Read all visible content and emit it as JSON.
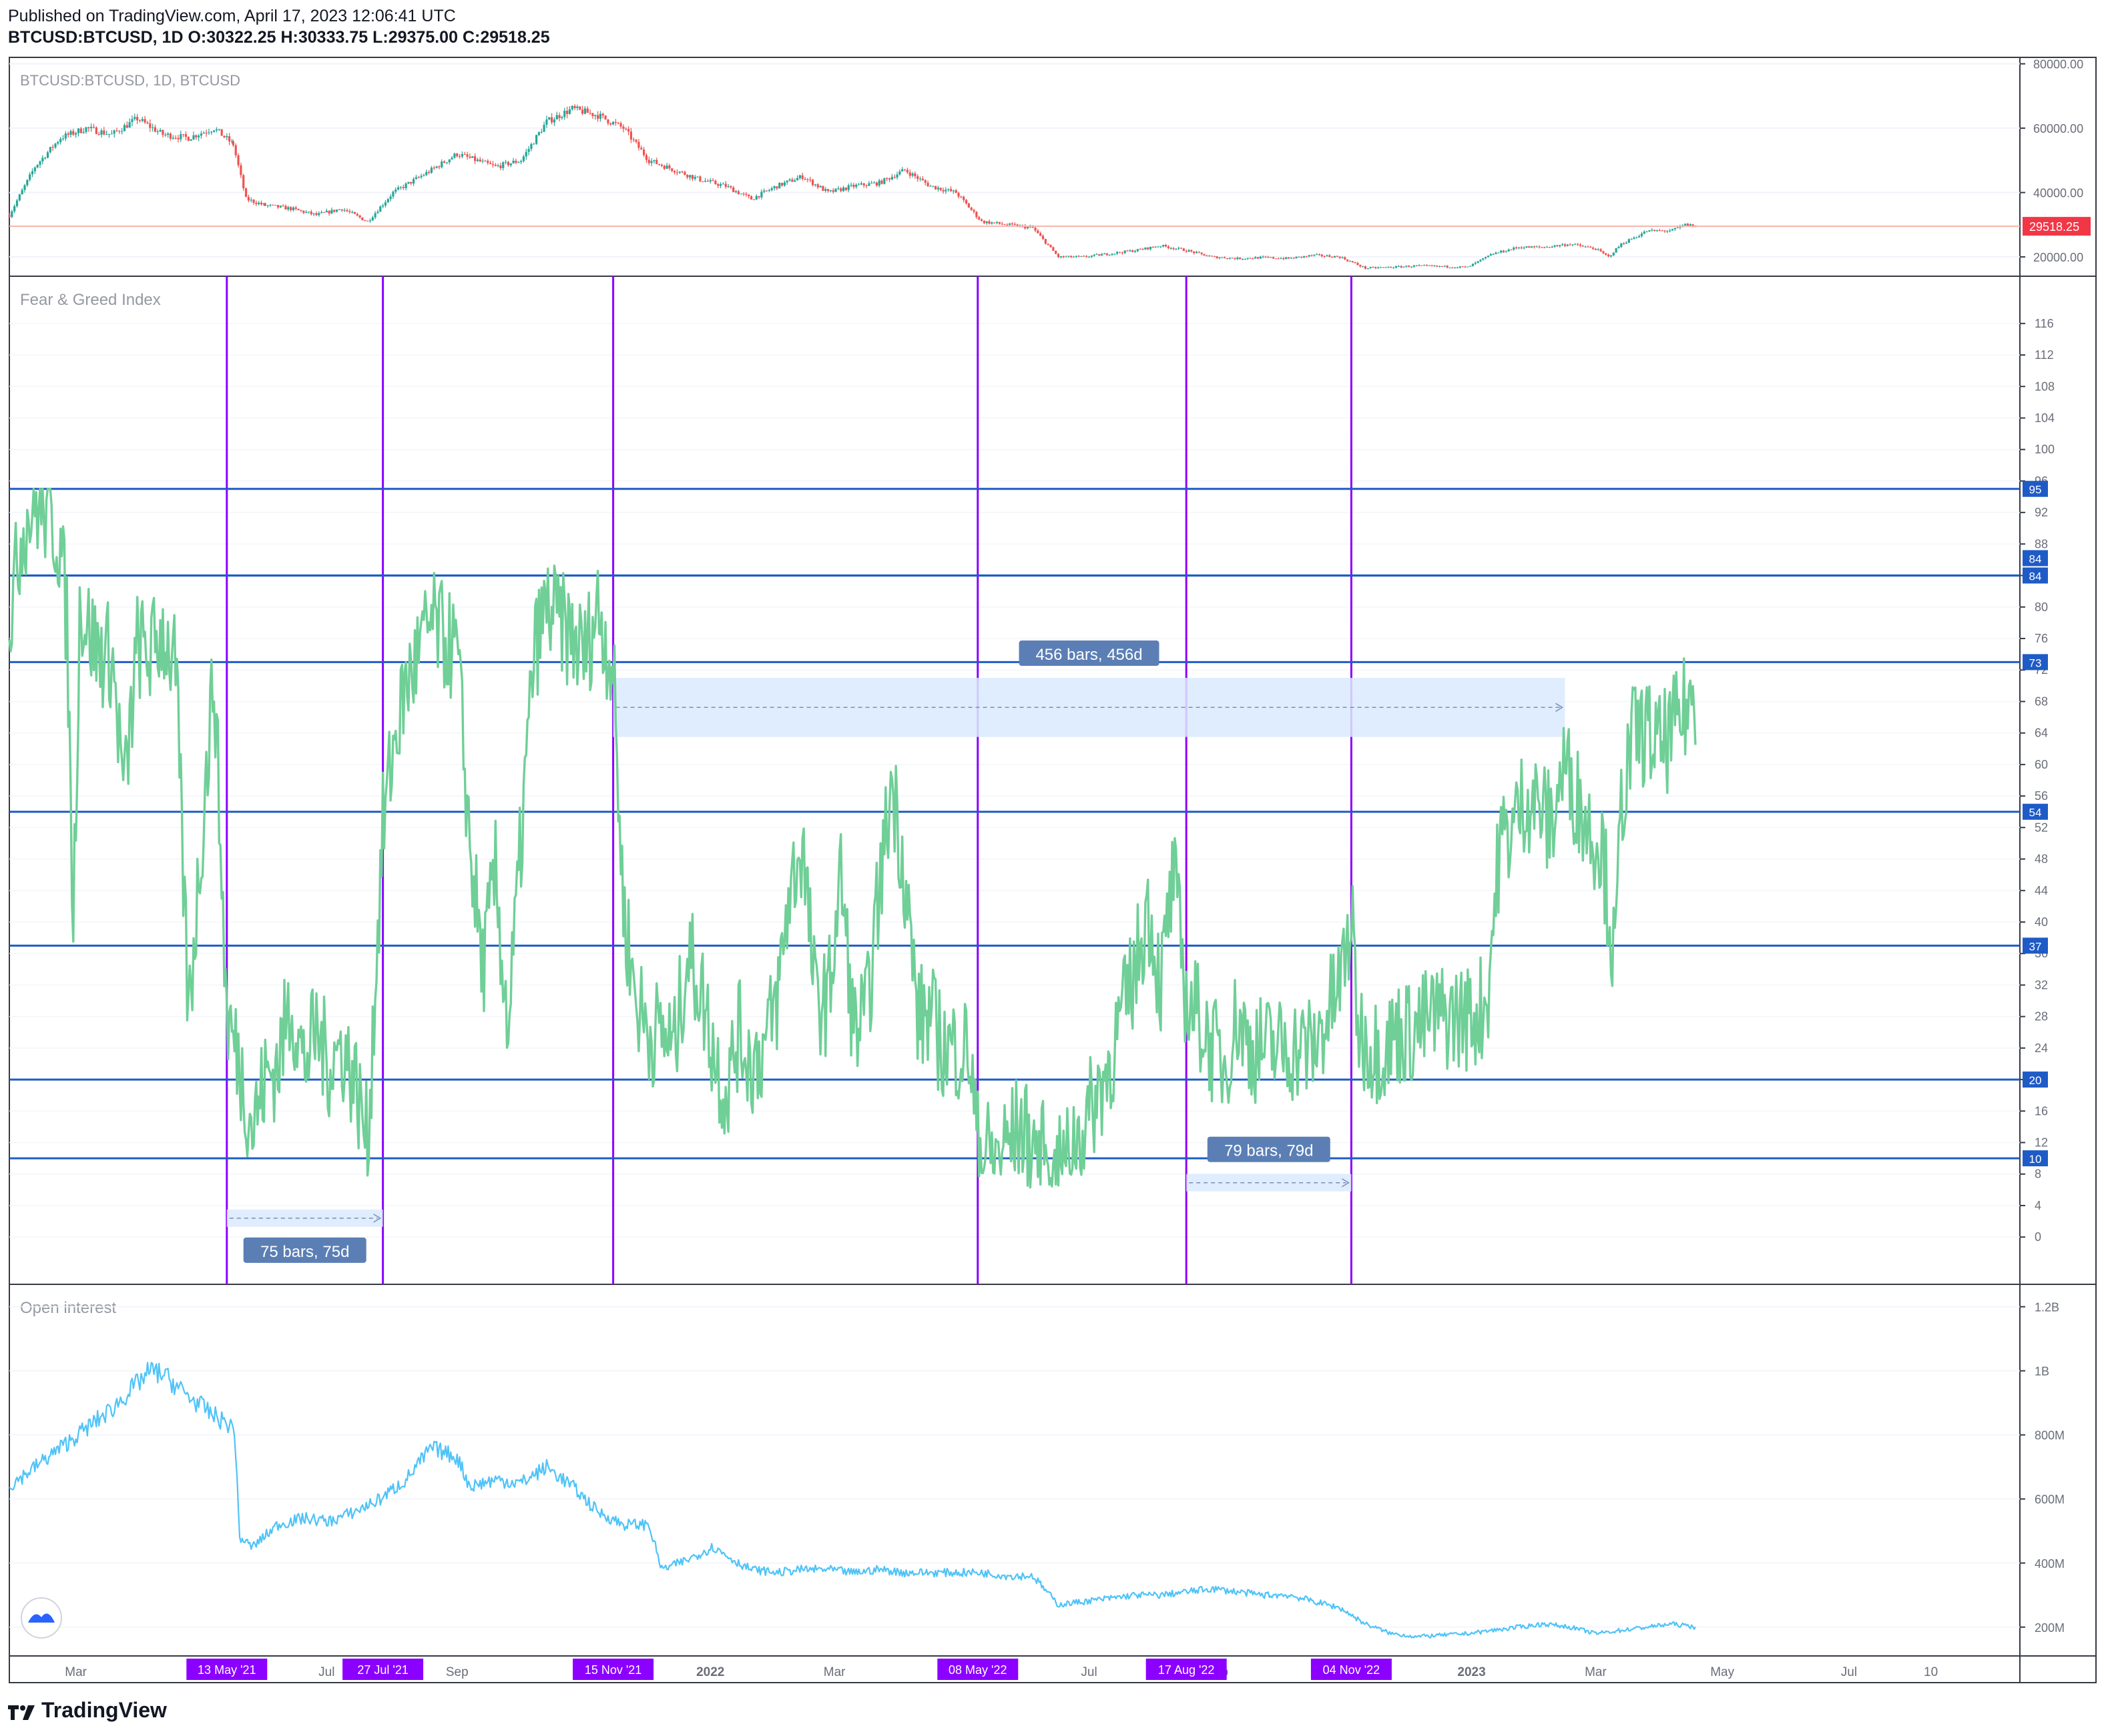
{
  "header": {
    "published": "Published on TradingView.com, April 17, 2023 12:06:41 UTC",
    "symbol": "BTCUSD:BTCUSD, 1D",
    "open_label": "O:",
    "open": "30322.25",
    "high_label": "H:",
    "high": "30333.75",
    "low_label": "L:",
    "low": "29375.00",
    "close_label": "C:",
    "close": "29518.25"
  },
  "footer": {
    "brand": "TradingView"
  },
  "colors": {
    "candle_up": "#26a69a",
    "candle_down": "#ef5350",
    "fear_greed": "#6fcf97",
    "open_interest": "#4fc3f7",
    "hline": "#1e5bc6",
    "vline": "#8b00ff",
    "range_fill": "#dbeafe",
    "range_label": "#5b7fb5",
    "price_tag": "#f23645",
    "date_tag": "#8b00ff",
    "level_tag": "#1e5bc6"
  },
  "chart_data": [
    {
      "type": "candlestick",
      "title": "BTCUSD:BTCUSD, 1D, BTCUSD",
      "ylim": [
        14000,
        82000
      ],
      "y_ticks": [
        "80000.00",
        "60000.00",
        "40000.00",
        "20000.00"
      ],
      "last_price": "29518.25",
      "anchors": [
        [
          0,
          33000
        ],
        [
          20,
          48000
        ],
        [
          40,
          57000
        ],
        [
          60,
          60000
        ],
        [
          80,
          58000
        ],
        [
          100,
          63000
        ],
        [
          120,
          58000
        ],
        [
          140,
          57000
        ],
        [
          160,
          60000
        ],
        [
          175,
          55000
        ],
        [
          185,
          38000
        ],
        [
          200,
          36000
        ],
        [
          220,
          35000
        ],
        [
          240,
          33000
        ],
        [
          260,
          35000
        ],
        [
          280,
          31000
        ],
        [
          300,
          40000
        ],
        [
          330,
          47000
        ],
        [
          350,
          52000
        ],
        [
          380,
          48000
        ],
        [
          400,
          50000
        ],
        [
          420,
          62000
        ],
        [
          440,
          66000
        ],
        [
          460,
          64000
        ],
        [
          480,
          60000
        ],
        [
          500,
          50000
        ],
        [
          520,
          47000
        ],
        [
          540,
          44000
        ],
        [
          560,
          42000
        ],
        [
          580,
          38000
        ],
        [
          600,
          42000
        ],
        [
          620,
          45000
        ],
        [
          640,
          40000
        ],
        [
          660,
          42000
        ],
        [
          680,
          43000
        ],
        [
          700,
          47000
        ],
        [
          720,
          42000
        ],
        [
          740,
          40000
        ],
        [
          760,
          31000
        ],
        [
          780,
          30000
        ],
        [
          800,
          29000
        ],
        [
          820,
          20000
        ],
        [
          840,
          20000
        ],
        [
          860,
          21000
        ],
        [
          880,
          22000
        ],
        [
          900,
          23500
        ],
        [
          920,
          22000
        ],
        [
          940,
          20000
        ],
        [
          960,
          19500
        ],
        [
          980,
          19800
        ],
        [
          1000,
          19500
        ],
        [
          1020,
          20500
        ],
        [
          1040,
          20000
        ],
        [
          1060,
          16500
        ],
        [
          1080,
          16800
        ],
        [
          1100,
          17200
        ],
        [
          1120,
          17000
        ],
        [
          1140,
          16800
        ],
        [
          1160,
          21000
        ],
        [
          1180,
          23000
        ],
        [
          1200,
          23000
        ],
        [
          1220,
          24000
        ],
        [
          1240,
          22500
        ],
        [
          1250,
          20000
        ],
        [
          1260,
          24000
        ],
        [
          1280,
          28000
        ],
        [
          1300,
          28200
        ],
        [
          1310,
          30000
        ],
        [
          1318,
          29518
        ]
      ]
    },
    {
      "type": "line",
      "title": "Fear & Greed Index",
      "ylim": [
        -6,
        122
      ],
      "y_ticks": [
        116,
        112,
        108,
        104,
        100,
        96,
        92,
        88,
        84,
        80,
        76,
        72,
        68,
        64,
        60,
        56,
        52,
        48,
        44,
        40,
        36,
        32,
        28,
        24,
        20,
        16,
        12,
        8,
        4,
        0
      ],
      "levels": [
        95,
        84,
        84,
        73,
        54,
        37,
        20,
        10
      ],
      "anchors": [
        [
          0,
          78
        ],
        [
          10,
          90
        ],
        [
          20,
          93
        ],
        [
          30,
          92
        ],
        [
          40,
          88
        ],
        [
          45,
          78
        ],
        [
          50,
          40
        ],
        [
          55,
          80
        ],
        [
          70,
          74
        ],
        [
          80,
          74
        ],
        [
          90,
          56
        ],
        [
          100,
          75
        ],
        [
          110,
          74
        ],
        [
          120,
          77
        ],
        [
          130,
          72
        ],
        [
          140,
          28
        ],
        [
          150,
          50
        ],
        [
          160,
          72
        ],
        [
          170,
          28
        ],
        [
          180,
          22
        ],
        [
          190,
          14
        ],
        [
          200,
          20
        ],
        [
          210,
          22
        ],
        [
          220,
          30
        ],
        [
          230,
          22
        ],
        [
          240,
          26
        ],
        [
          250,
          22
        ],
        [
          260,
          24
        ],
        [
          270,
          20
        ],
        [
          280,
          12
        ],
        [
          292,
          52
        ],
        [
          300,
          62
        ],
        [
          310,
          70
        ],
        [
          320,
          74
        ],
        [
          330,
          78
        ],
        [
          340,
          76
        ],
        [
          350,
          74
        ],
        [
          360,
          50
        ],
        [
          370,
          34
        ],
        [
          380,
          46
        ],
        [
          390,
          26
        ],
        [
          400,
          50
        ],
        [
          410,
          74
        ],
        [
          420,
          80
        ],
        [
          430,
          78
        ],
        [
          440,
          76
        ],
        [
          450,
          74
        ],
        [
          460,
          80
        ],
        [
          472,
          72
        ],
        [
          480,
          42
        ],
        [
          490,
          30
        ],
        [
          500,
          26
        ],
        [
          510,
          26
        ],
        [
          520,
          24
        ],
        [
          530,
          36
        ],
        [
          540,
          32
        ],
        [
          550,
          24
        ],
        [
          560,
          18
        ],
        [
          570,
          26
        ],
        [
          580,
          22
        ],
        [
          590,
          24
        ],
        [
          600,
          30
        ],
        [
          610,
          44
        ],
        [
          620,
          50
        ],
        [
          630,
          30
        ],
        [
          640,
          30
        ],
        [
          650,
          46
        ],
        [
          660,
          26
        ],
        [
          670,
          28
        ],
        [
          680,
          44
        ],
        [
          690,
          58
        ],
        [
          700,
          46
        ],
        [
          710,
          28
        ],
        [
          720,
          28
        ],
        [
          730,
          24
        ],
        [
          740,
          24
        ],
        [
          750,
          24
        ],
        [
          757,
          12
        ],
        [
          770,
          10
        ],
        [
          780,
          12
        ],
        [
          790,
          14
        ],
        [
          800,
          12
        ],
        [
          810,
          10
        ],
        [
          820,
          8
        ],
        [
          830,
          12
        ],
        [
          840,
          14
        ],
        [
          850,
          18
        ],
        [
          860,
          22
        ],
        [
          870,
          28
        ],
        [
          880,
          34
        ],
        [
          890,
          42
        ],
        [
          900,
          32
        ],
        [
          910,
          46
        ],
        [
          920,
          30
        ],
        [
          930,
          28
        ],
        [
          940,
          24
        ],
        [
          950,
          22
        ],
        [
          960,
          28
        ],
        [
          970,
          24
        ],
        [
          980,
          24
        ],
        [
          990,
          24
        ],
        [
          1000,
          24
        ],
        [
          1010,
          24
        ],
        [
          1020,
          24
        ],
        [
          1030,
          28
        ],
        [
          1040,
          32
        ],
        [
          1049,
          40
        ],
        [
          1055,
          26
        ],
        [
          1065,
          24
        ],
        [
          1075,
          24
        ],
        [
          1085,
          26
        ],
        [
          1095,
          26
        ],
        [
          1105,
          27
        ],
        [
          1115,
          28
        ],
        [
          1125,
          28
        ],
        [
          1135,
          28
        ],
        [
          1145,
          28
        ],
        [
          1155,
          30
        ],
        [
          1165,
          50
        ],
        [
          1175,
          52
        ],
        [
          1185,
          56
        ],
        [
          1195,
          55
        ],
        [
          1205,
          52
        ],
        [
          1215,
          60
        ],
        [
          1225,
          56
        ],
        [
          1235,
          52
        ],
        [
          1245,
          50
        ],
        [
          1255,
          34
        ],
        [
          1260,
          55
        ],
        [
          1270,
          64
        ],
        [
          1280,
          64
        ],
        [
          1290,
          62
        ],
        [
          1300,
          64
        ],
        [
          1310,
          67
        ],
        [
          1318,
          69
        ]
      ],
      "events": [
        {
          "x": 170,
          "label": "13 May '21"
        },
        {
          "x": 292,
          "label": "27 Jul '21"
        },
        {
          "x": 472,
          "label": "15 Nov '21"
        },
        {
          "x": 757,
          "label": "08 May '22"
        },
        {
          "x": 920,
          "label": "17 Aug '22"
        },
        {
          "x": 1049,
          "label": "04 Nov '22"
        }
      ],
      "ranges": [
        {
          "x1": 170,
          "x2": 292,
          "y_top": 3.5,
          "y_bottom": 1.3,
          "label": "75 bars, 75d"
        },
        {
          "x1": 472,
          "x2": 1216,
          "y_top": 71,
          "y_bottom": 63.5,
          "label": "456 bars, 456d"
        },
        {
          "x1": 920,
          "x2": 1049,
          "y_top": 8,
          "y_bottom": 5.8,
          "label": "79 bars, 79d"
        }
      ]
    },
    {
      "type": "line",
      "title": "Open interest",
      "ylim": [
        110,
        1270
      ],
      "y_ticks": [
        "1.2B",
        "1B",
        "800M",
        "600M",
        "400M",
        "200M"
      ],
      "units": "M",
      "anchors": [
        [
          0,
          640
        ],
        [
          20,
          700
        ],
        [
          40,
          760
        ],
        [
          60,
          820
        ],
        [
          80,
          880
        ],
        [
          100,
          960
        ],
        [
          110,
          1000
        ],
        [
          120,
          990
        ],
        [
          140,
          920
        ],
        [
          160,
          860
        ],
        [
          176,
          820
        ],
        [
          180,
          480
        ],
        [
          190,
          450
        ],
        [
          210,
          520
        ],
        [
          230,
          540
        ],
        [
          250,
          530
        ],
        [
          270,
          560
        ],
        [
          290,
          600
        ],
        [
          310,
          660
        ],
        [
          330,
          760
        ],
        [
          350,
          730
        ],
        [
          360,
          640
        ],
        [
          380,
          660
        ],
        [
          400,
          650
        ],
        [
          420,
          700
        ],
        [
          440,
          640
        ],
        [
          460,
          560
        ],
        [
          480,
          520
        ],
        [
          500,
          520
        ],
        [
          510,
          380
        ],
        [
          530,
          410
        ],
        [
          550,
          450
        ],
        [
          570,
          400
        ],
        [
          580,
          380
        ],
        [
          600,
          370
        ],
        [
          620,
          380
        ],
        [
          640,
          380
        ],
        [
          660,
          370
        ],
        [
          680,
          380
        ],
        [
          700,
          370
        ],
        [
          720,
          370
        ],
        [
          740,
          370
        ],
        [
          760,
          370
        ],
        [
          780,
          360
        ],
        [
          800,
          360
        ],
        [
          820,
          270
        ],
        [
          840,
          280
        ],
        [
          860,
          290
        ],
        [
          880,
          300
        ],
        [
          900,
          300
        ],
        [
          920,
          310
        ],
        [
          940,
          320
        ],
        [
          960,
          310
        ],
        [
          980,
          300
        ],
        [
          1000,
          300
        ],
        [
          1020,
          280
        ],
        [
          1040,
          260
        ],
        [
          1060,
          210
        ],
        [
          1080,
          180
        ],
        [
          1100,
          170
        ],
        [
          1120,
          175
        ],
        [
          1140,
          180
        ],
        [
          1160,
          190
        ],
        [
          1180,
          200
        ],
        [
          1200,
          210
        ],
        [
          1220,
          200
        ],
        [
          1240,
          180
        ],
        [
          1260,
          190
        ],
        [
          1280,
          200
        ],
        [
          1300,
          210
        ],
        [
          1318,
          200
        ]
      ]
    }
  ],
  "x_axis": {
    "labels": [
      {
        "x": 52,
        "label": "Mar"
      },
      {
        "x": 248,
        "label": "Jul"
      },
      {
        "x": 350,
        "label": "Sep"
      },
      {
        "x": 548,
        "label": "2022"
      },
      {
        "x": 645,
        "label": "Mar"
      },
      {
        "x": 844,
        "label": "Jul"
      },
      {
        "x": 944,
        "label": "Sep"
      },
      {
        "x": 1143,
        "label": "2023"
      },
      {
        "x": 1240,
        "label": "Mar"
      },
      {
        "x": 1339,
        "label": "May"
      },
      {
        "x": 1438,
        "label": "Jul"
      },
      {
        "x": 1502,
        "label": "10"
      }
    ]
  }
}
